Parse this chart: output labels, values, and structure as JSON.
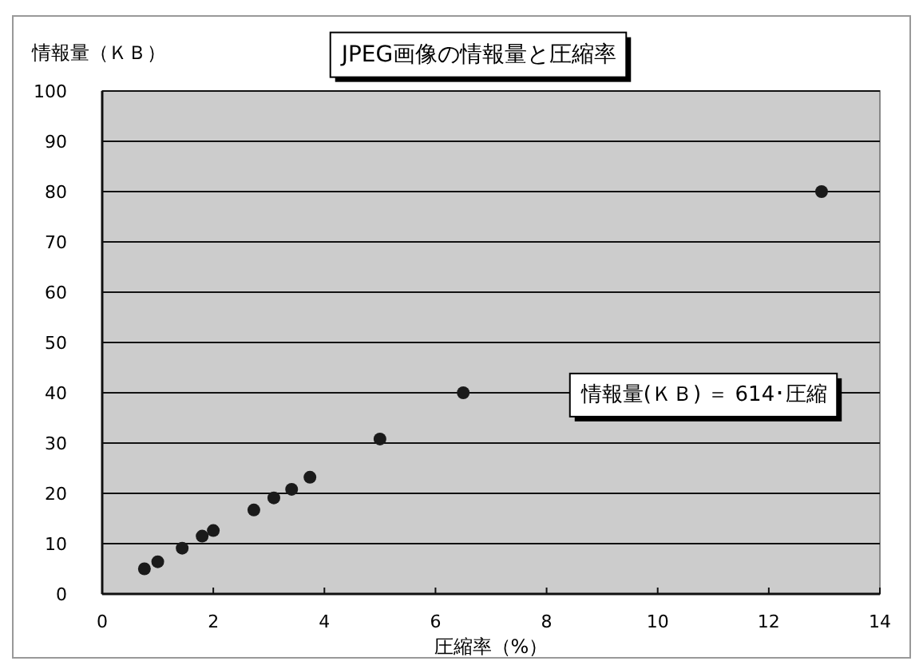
{
  "chart_data": {
    "type": "scatter",
    "title": "JPEG画像の情報量と圧縮率",
    "xlabel": "圧縮率（%）",
    "ylabel": "情報量（ＫＢ）",
    "x": [
      0.76,
      1.0,
      1.44,
      1.8,
      2.0,
      2.73,
      3.09,
      3.41,
      3.74,
      5.0,
      6.5,
      12.95
    ],
    "values": [
      5.0,
      6.4,
      9.1,
      11.5,
      12.6,
      16.7,
      19.1,
      20.8,
      23.2,
      30.8,
      40,
      80
    ],
    "color": "#1a1a1a",
    "marker": "circle",
    "grid": "y",
    "xlim": [
      0,
      14
    ],
    "xticks": [
      0,
      2,
      4,
      6,
      8,
      10,
      12,
      14
    ],
    "ylim": [
      0,
      100
    ],
    "yticks": [
      0,
      10,
      20,
      30,
      40,
      50,
      60,
      70,
      80,
      90,
      100
    ],
    "annotations": [
      "情報量(ＫＢ) ＝ 614･圧縮"
    ]
  }
}
